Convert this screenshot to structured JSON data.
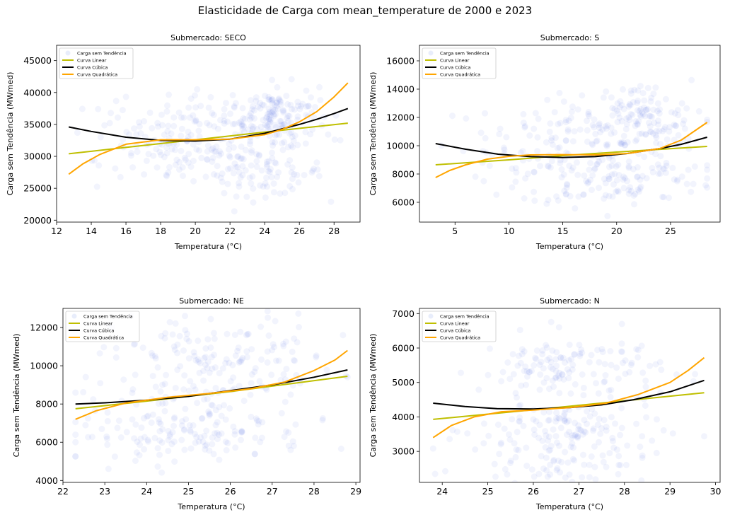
{
  "figure": {
    "title": "Elasticidade de Carga com mean_temperature de 2000 e 2023"
  },
  "legend_items": [
    "Carga sem Tendência",
    "Curva Linear",
    "Curva Cúbica",
    "Curva Quadrática"
  ],
  "colors": {
    "scatter": "#4169e1",
    "linear": "#bfbf00",
    "cubic": "#000000",
    "quadratic": "#ffa500"
  },
  "chart_data": [
    {
      "type": "scatter",
      "title": "Submercado: SECO",
      "xlabel": "Temperatura (°C)",
      "ylabel": "Carga sem Tendência (MWmed)",
      "xlim": [
        12.0,
        29.5
      ],
      "ylim": [
        19700,
        47400
      ],
      "xticks": [
        12,
        14,
        16,
        18,
        20,
        22,
        24,
        26,
        28
      ],
      "yticks": [
        20000,
        25000,
        30000,
        35000,
        40000,
        45000
      ],
      "legend_position": "upper-left",
      "x_range": [
        12.7,
        28.8
      ],
      "series": [
        {
          "name": "Curva Linear",
          "x": [
            12.7,
            16,
            20,
            24,
            28.8
          ],
          "y": [
            30400,
            31400,
            32600,
            33800,
            35200
          ]
        },
        {
          "name": "Curva Cúbica",
          "x": [
            12.7,
            14,
            16,
            18,
            20,
            22,
            24,
            26,
            27,
            28,
            28.8
          ],
          "y": [
            34600,
            33900,
            33000,
            32500,
            32400,
            32700,
            33600,
            35000,
            35800,
            36700,
            37500
          ]
        },
        {
          "name": "Curva Quadrática",
          "x": [
            12.7,
            13.5,
            14.5,
            16,
            18,
            20,
            22,
            24,
            25,
            26,
            27,
            28,
            28.8
          ],
          "y": [
            27200,
            28800,
            30300,
            31900,
            32600,
            32600,
            32700,
            33400,
            34200,
            35400,
            37000,
            39300,
            41500
          ]
        }
      ],
      "scatter_clusters": [
        {
          "cx": 22,
          "cy": 34000,
          "sx": 3.0,
          "sy": 2600,
          "n": 130
        },
        {
          "cx": 24.5,
          "cy": 37000,
          "sx": 1.3,
          "sy": 2200,
          "n": 110
        },
        {
          "cx": 24,
          "cy": 27500,
          "sx": 1.7,
          "sy": 1800,
          "n": 80
        },
        {
          "cx": 19.5,
          "cy": 29500,
          "sx": 2.6,
          "sy": 2300,
          "n": 60
        },
        {
          "cx": 16.5,
          "cy": 33000,
          "sx": 2.2,
          "sy": 3000,
          "n": 35
        }
      ]
    },
    {
      "type": "scatter",
      "title": "Submercado: S",
      "xlabel": "Temperatura (°C)",
      "ylabel": "Carga sem Tendência (MWmed)",
      "xlim": [
        1.7,
        29.6
      ],
      "ylim": [
        4600,
        17100
      ],
      "xticks": [
        5,
        10,
        15,
        20,
        25
      ],
      "yticks": [
        6000,
        8000,
        10000,
        12000,
        14000,
        16000
      ],
      "legend_position": "upper-left",
      "x_range": [
        3.2,
        28.4
      ],
      "series": [
        {
          "name": "Curva Linear",
          "x": [
            3.2,
            10,
            15,
            20,
            28.4
          ],
          "y": [
            8650,
            9000,
            9300,
            9550,
            9950
          ]
        },
        {
          "name": "Curva Cúbica",
          "x": [
            3.2,
            6,
            9,
            12,
            15,
            18,
            21,
            24,
            26,
            28.4
          ],
          "y": [
            10150,
            9750,
            9400,
            9230,
            9170,
            9230,
            9450,
            9800,
            10100,
            10600
          ]
        },
        {
          "name": "Curva Quadrática",
          "x": [
            3.2,
            4.5,
            6,
            8,
            10,
            12,
            15,
            18,
            21,
            24,
            26,
            28.4
          ],
          "y": [
            7750,
            8250,
            8650,
            9050,
            9250,
            9350,
            9370,
            9350,
            9450,
            9800,
            10400,
            11650
          ]
        }
      ],
      "scatter_clusters": [
        {
          "cx": 19,
          "cy": 10800,
          "sx": 5.0,
          "sy": 1300,
          "n": 130
        },
        {
          "cx": 22.5,
          "cy": 11800,
          "sx": 2.2,
          "sy": 1400,
          "n": 90
        },
        {
          "cx": 20,
          "cy": 7600,
          "sx": 4.5,
          "sy": 900,
          "n": 110
        },
        {
          "cx": 11,
          "cy": 9500,
          "sx": 4.0,
          "sy": 1600,
          "n": 45
        }
      ]
    },
    {
      "type": "scatter",
      "title": "Submercado: NE",
      "xlabel": "Temperatura (°C)",
      "ylabel": "Carga sem Tendência (MWmed)",
      "xlim": [
        22.0,
        29.1
      ],
      "ylim": [
        3900,
        13000
      ],
      "xticks": [
        22,
        23,
        24,
        25,
        26,
        27,
        28,
        29
      ],
      "yticks": [
        4000,
        6000,
        8000,
        10000,
        12000
      ],
      "legend_position": "upper-left",
      "x_range": [
        22.3,
        28.8
      ],
      "series": [
        {
          "name": "Curva Linear",
          "x": [
            22.3,
            24,
            26,
            28.8
          ],
          "y": [
            7750,
            8150,
            8650,
            9450
          ]
        },
        {
          "name": "Curva Cúbica",
          "x": [
            22.3,
            23,
            24,
            25,
            26,
            27,
            28,
            28.8
          ],
          "y": [
            8000,
            8060,
            8200,
            8400,
            8700,
            9000,
            9400,
            9780
          ]
        },
        {
          "name": "Curva Quadrática",
          "x": [
            22.3,
            22.8,
            23.5,
            24.5,
            25.5,
            26.5,
            27.3,
            28,
            28.5,
            28.8
          ],
          "y": [
            7200,
            7650,
            8050,
            8350,
            8550,
            8800,
            9150,
            9750,
            10300,
            10800
          ]
        }
      ],
      "scatter_clusters": [
        {
          "cx": 25.8,
          "cy": 10500,
          "sx": 1.3,
          "sy": 1100,
          "n": 130
        },
        {
          "cx": 25.2,
          "cy": 8200,
          "sx": 1.4,
          "sy": 1000,
          "n": 80
        },
        {
          "cx": 25.0,
          "cy": 6300,
          "sx": 1.4,
          "sy": 600,
          "n": 120
        }
      ]
    },
    {
      "type": "scatter",
      "title": "Submercado: N",
      "xlabel": "Temperatura (°C)",
      "ylabel": "Carga sem Tendência (MWmed)",
      "xlim": [
        23.5,
        30.1
      ],
      "ylim": [
        2100,
        7150
      ],
      "xticks": [
        24,
        25,
        26,
        27,
        28,
        29,
        30
      ],
      "yticks": [
        3000,
        4000,
        5000,
        6000,
        7000
      ],
      "legend_position": "upper-left",
      "x_range": [
        23.8,
        29.75
      ],
      "series": [
        {
          "name": "Curva Linear",
          "x": [
            23.8,
            25,
            26.5,
            28,
            29.75
          ],
          "y": [
            3930,
            4080,
            4270,
            4470,
            4700
          ]
        },
        {
          "name": "Curva Cúbica",
          "x": [
            23.8,
            24.5,
            25.2,
            26,
            26.8,
            27.5,
            28.2,
            29,
            29.75
          ],
          "y": [
            4400,
            4300,
            4240,
            4230,
            4270,
            4350,
            4500,
            4730,
            5060
          ]
        },
        {
          "name": "Curva Quadrática",
          "x": [
            23.8,
            24.2,
            24.7,
            25.3,
            26,
            26.8,
            27.6,
            28.3,
            29,
            29.4,
            29.75
          ],
          "y": [
            3400,
            3750,
            4000,
            4150,
            4200,
            4270,
            4400,
            4650,
            5000,
            5350,
            5720
          ]
        }
      ],
      "scatter_clusters": [
        {
          "cx": 26.8,
          "cy": 5400,
          "sx": 1.0,
          "sy": 500,
          "n": 140
        },
        {
          "cx": 26.8,
          "cy": 3600,
          "sx": 1.0,
          "sy": 400,
          "n": 110
        },
        {
          "cx": 26.5,
          "cy": 2700,
          "sx": 1.0,
          "sy": 300,
          "n": 70
        }
      ]
    }
  ]
}
